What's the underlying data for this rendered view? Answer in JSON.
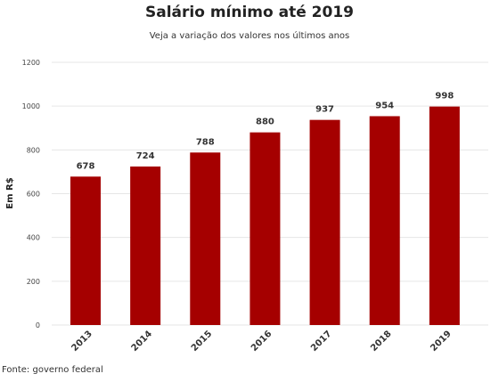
{
  "title": "Salário mínimo até 2019",
  "subtitle": "Veja a variação dos valores nos últimos anos",
  "source": "Fonte: governo federal",
  "chart_data": {
    "type": "bar",
    "categories": [
      "2013",
      "2014",
      "2015",
      "2016",
      "2017",
      "2018",
      "2019"
    ],
    "values": [
      678,
      724,
      788,
      880,
      937,
      954,
      998
    ],
    "data_labels": [
      "678",
      "724",
      "788",
      "880",
      "937",
      "954",
      "998"
    ],
    "ylabel": "Em R$",
    "xlabel": "",
    "ylim": [
      0,
      1200
    ],
    "yticks": [
      0,
      200,
      400,
      600,
      800,
      1000,
      1200
    ],
    "ytick_labels": [
      "0",
      "200",
      "400",
      "600",
      "800",
      "1000",
      "1200"
    ],
    "grid": true,
    "legend": "none",
    "bar_color": "#a50000",
    "grid_color": "#e6e6e6"
  }
}
